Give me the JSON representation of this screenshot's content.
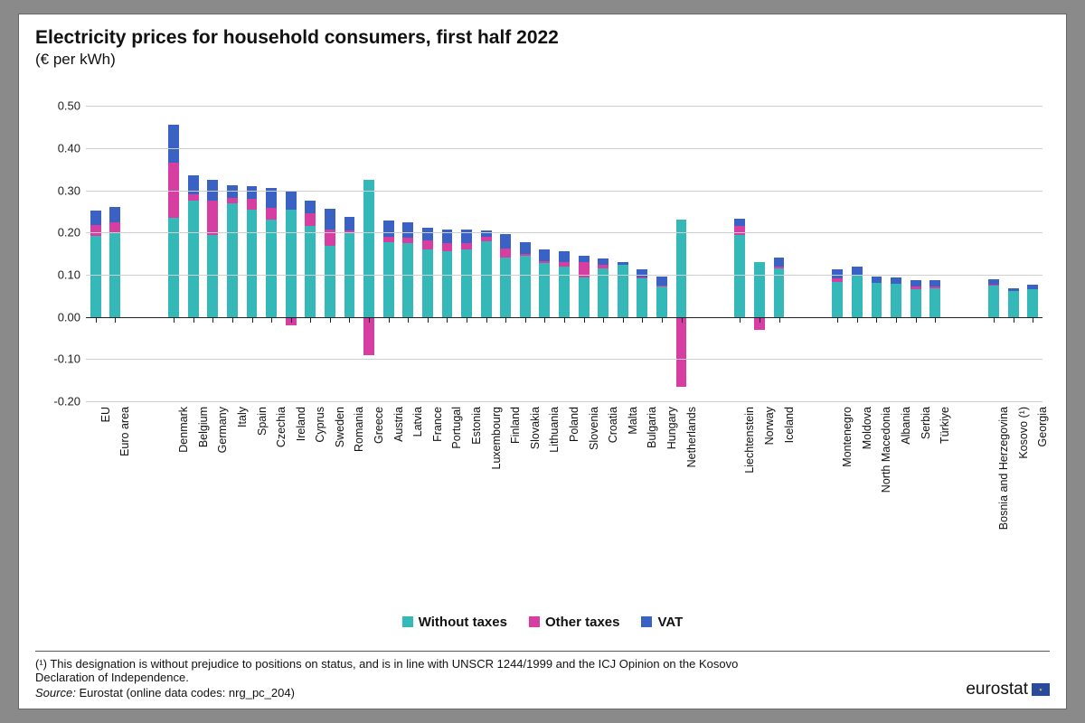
{
  "title": "Electricity prices for household consumers, first half 2022",
  "subtitle": "(€ per kWh)",
  "chart": {
    "type": "stacked-bar",
    "ylim_min": -0.2,
    "ylim_max": 0.55,
    "yticks": [
      -0.2,
      -0.1,
      0.0,
      0.1,
      0.2,
      0.3,
      0.4,
      0.5
    ],
    "ytick_labels": [
      "-0.20",
      "-0.10",
      "0.00",
      "0.10",
      "0.20",
      "0.30",
      "0.40",
      "0.50"
    ],
    "grid_color": "#cfcfcf",
    "axis_color": "#222222",
    "background": "#ffffff",
    "bar_width_ratio": 0.55,
    "groups": [
      [
        "EU",
        "Euro area"
      ],
      [
        "Denmark",
        "Belgium",
        "Germany",
        "Italy",
        "Spain",
        "Czechia",
        "Ireland",
        "Cyprus",
        "Sweden",
        "Romania",
        "Greece",
        "Austria",
        "Latvia",
        "France",
        "Portugal",
        "Estonia",
        "Luxembourg",
        "Finland",
        "Slovakia",
        "Lithuania",
        "Poland",
        "Slovenia",
        "Croatia",
        "Malta",
        "Bulgaria",
        "Hungary",
        "Netherlands"
      ],
      [
        "Liechtenstein",
        "Norway",
        "Iceland"
      ],
      [
        "Montenegro",
        "Moldova",
        "North Macedonia",
        "Albania",
        "Serbia",
        "Türkiye"
      ],
      [
        "Bosnia and Herzegovina",
        "Kosovo (¹)",
        "Georgia"
      ]
    ],
    "group_gap_slots": 1.2,
    "series": {
      "without_taxes": {
        "label": "Without taxes",
        "color": "#34b8b8"
      },
      "other_taxes": {
        "label": "Other taxes",
        "color": "#d63ea2"
      },
      "vat": {
        "label": "VAT",
        "color": "#3a62c4"
      }
    },
    "data": {
      "EU": {
        "without_taxes": 0.192,
        "other_taxes": 0.025,
        "vat": 0.035
      },
      "Euro area": {
        "without_taxes": 0.2,
        "other_taxes": 0.025,
        "vat": 0.035
      },
      "Denmark": {
        "without_taxes": 0.235,
        "other_taxes": 0.13,
        "vat": 0.09
      },
      "Belgium": {
        "without_taxes": 0.275,
        "other_taxes": 0.015,
        "vat": 0.045
      },
      "Germany": {
        "without_taxes": 0.195,
        "other_taxes": 0.08,
        "vat": 0.05
      },
      "Italy": {
        "without_taxes": 0.27,
        "other_taxes": 0.012,
        "vat": 0.03
      },
      "Spain": {
        "without_taxes": 0.255,
        "other_taxes": 0.024,
        "vat": 0.03
      },
      "Czechia": {
        "without_taxes": 0.23,
        "other_taxes": 0.028,
        "vat": 0.048
      },
      "Ireland": {
        "without_taxes": 0.255,
        "other_taxes": -0.02,
        "vat": 0.042
      },
      "Cyprus": {
        "without_taxes": 0.215,
        "other_taxes": 0.03,
        "vat": 0.03
      },
      "Sweden": {
        "without_taxes": 0.168,
        "other_taxes": 0.04,
        "vat": 0.048
      },
      "Romania": {
        "without_taxes": 0.2,
        "other_taxes": 0.005,
        "vat": 0.032
      },
      "Greece": {
        "without_taxes": 0.325,
        "other_taxes": -0.09,
        "vat": 0.0
      },
      "Austria": {
        "without_taxes": 0.178,
        "other_taxes": 0.012,
        "vat": 0.038
      },
      "Latvia": {
        "without_taxes": 0.175,
        "other_taxes": 0.012,
        "vat": 0.038
      },
      "France": {
        "without_taxes": 0.16,
        "other_taxes": 0.022,
        "vat": 0.03
      },
      "Portugal": {
        "without_taxes": 0.155,
        "other_taxes": 0.02,
        "vat": 0.032
      },
      "Estonia": {
        "without_taxes": 0.16,
        "other_taxes": 0.015,
        "vat": 0.032
      },
      "Luxembourg": {
        "without_taxes": 0.18,
        "other_taxes": 0.01,
        "vat": 0.015
      },
      "Finland": {
        "without_taxes": 0.14,
        "other_taxes": 0.022,
        "vat": 0.035
      },
      "Slovakia": {
        "without_taxes": 0.145,
        "other_taxes": 0.005,
        "vat": 0.028
      },
      "Lithuania": {
        "without_taxes": 0.128,
        "other_taxes": 0.005,
        "vat": 0.028
      },
      "Poland": {
        "without_taxes": 0.12,
        "other_taxes": 0.01,
        "vat": 0.025
      },
      "Slovenia": {
        "without_taxes": 0.094,
        "other_taxes": 0.035,
        "vat": 0.015
      },
      "Croatia": {
        "without_taxes": 0.115,
        "other_taxes": 0.008,
        "vat": 0.015
      },
      "Malta": {
        "without_taxes": 0.123,
        "other_taxes": 0.0,
        "vat": 0.006
      },
      "Bulgaria": {
        "without_taxes": 0.092,
        "other_taxes": 0.002,
        "vat": 0.018
      },
      "Hungary": {
        "without_taxes": 0.073,
        "other_taxes": 0.002,
        "vat": 0.02
      },
      "Netherlands": {
        "without_taxes": 0.23,
        "other_taxes": -0.165,
        "vat": 0.0
      },
      "Liechtenstein": {
        "without_taxes": 0.195,
        "other_taxes": 0.02,
        "vat": 0.018
      },
      "Norway": {
        "without_taxes": 0.13,
        "other_taxes": -0.03,
        "vat": 0.0
      },
      "Iceland": {
        "without_taxes": 0.115,
        "other_taxes": 0.005,
        "vat": 0.02
      },
      "Montenegro": {
        "without_taxes": 0.082,
        "other_taxes": 0.01,
        "vat": 0.02
      },
      "Moldova": {
        "without_taxes": 0.1,
        "other_taxes": 0.0,
        "vat": 0.02
      },
      "North Macedonia": {
        "without_taxes": 0.08,
        "other_taxes": 0.0,
        "vat": 0.015
      },
      "Albania": {
        "without_taxes": 0.078,
        "other_taxes": 0.0,
        "vat": 0.015
      },
      "Serbia": {
        "without_taxes": 0.065,
        "other_taxes": 0.008,
        "vat": 0.015
      },
      "Türkiye": {
        "without_taxes": 0.068,
        "other_taxes": 0.005,
        "vat": 0.015
      },
      "Bosnia and Herzegovina": {
        "without_taxes": 0.075,
        "other_taxes": 0.002,
        "vat": 0.013
      },
      "Kosovo (¹)": {
        "without_taxes": 0.062,
        "other_taxes": 0.0,
        "vat": 0.006
      },
      "Georgia": {
        "without_taxes": 0.065,
        "other_taxes": 0.0,
        "vat": 0.012
      }
    }
  },
  "footnote": "(¹) This designation is without prejudice to positions on status, and is in line with UNSCR 1244/1999 and the ICJ Opinion on the Kosovo Declaration of Independence.",
  "source_label": "Source:",
  "source_text": "Eurostat (online data codes: nrg_pc_204)",
  "brand": "eurostat"
}
